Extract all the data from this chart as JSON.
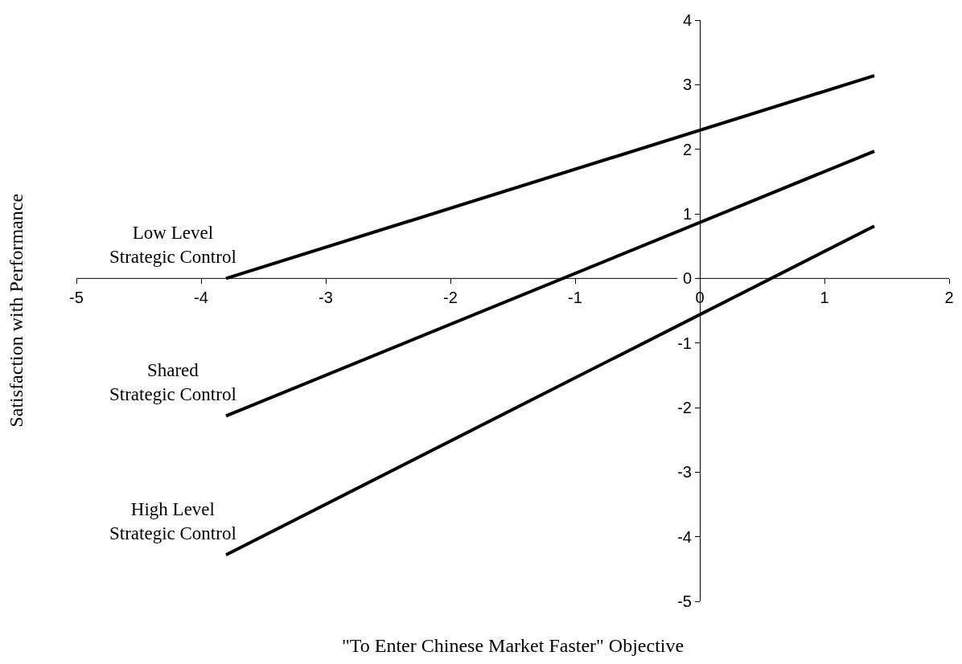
{
  "chart_data": {
    "type": "line",
    "xlabel": "\"To Enter Chinese Market Faster\" Objective",
    "ylabel": "Satisfaction with Performance",
    "x": [
      -3.8,
      1.4
    ],
    "series": [
      {
        "name": "Low Level\nStrategic Control",
        "color": "#000000",
        "values": [
          0.0,
          3.14
        ]
      },
      {
        "name": "Shared\nStrategic Control",
        "color": "#000000",
        "values": [
          -2.13,
          1.97
        ]
      },
      {
        "name": "High Level\nStrategic Control",
        "color": "#000000",
        "values": [
          -4.28,
          0.81
        ]
      }
    ],
    "xlim": [
      -5,
      2
    ],
    "xticks": [
      -5,
      -4,
      -3,
      -2,
      -1,
      0,
      1,
      2
    ],
    "ylim": [
      -5,
      4
    ],
    "yticks": [
      -5,
      -4,
      -3,
      -2,
      -1,
      0,
      1,
      2,
      3,
      4
    ],
    "grid": false,
    "legend": false,
    "marker": "none",
    "line_style": "solid"
  }
}
